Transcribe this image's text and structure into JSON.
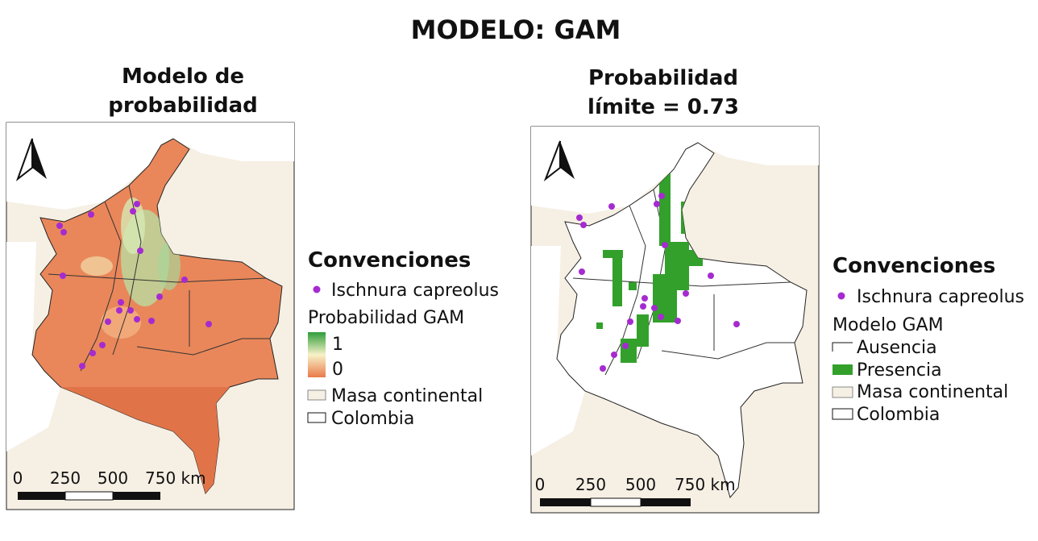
{
  "title": "MODELO: GAM",
  "panels": [
    {
      "title_lines": [
        "Modelo de",
        "probabilidad"
      ],
      "legend": {
        "heading": "Convenciones",
        "occurrence": "Ischnura capreolus",
        "model_title": "Probabilidad GAM",
        "gradient_max": "1",
        "gradient_min": "0",
        "land": "Masa continental",
        "country": "Colombia"
      },
      "scale_labels": [
        "0",
        "250",
        "500",
        "750 km"
      ]
    },
    {
      "title_lines": [
        "Probabilidad",
        "límite = 0.73"
      ],
      "legend": {
        "heading": "Convenciones",
        "occurrence": "Ischnura capreolus",
        "model_title": "Modelo GAM",
        "absence": "Ausencia",
        "presence": "Presencia",
        "land": "Masa continental",
        "country": "Colombia"
      },
      "scale_labels": [
        "0",
        "250",
        "500",
        "750 km"
      ]
    }
  ]
}
